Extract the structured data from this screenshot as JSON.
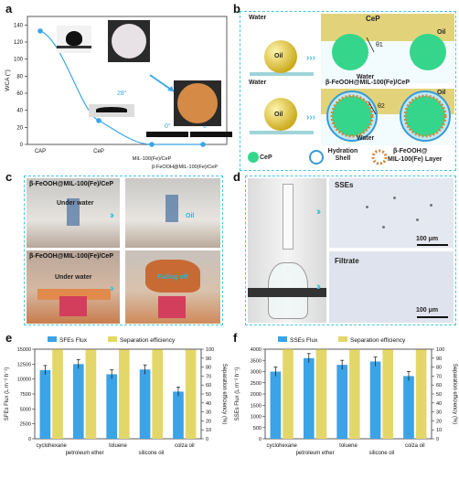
{
  "panel_labels": {
    "a": "a",
    "b": "b",
    "c": "c",
    "d": "d",
    "e": "e",
    "f": "f"
  },
  "colors": {
    "accent": "#46c6dd",
    "flux_bar": "#3ba3e6",
    "efficiency_bar": "#e4d76a",
    "oil": "#e6c82f",
    "cep": "#35d68c"
  },
  "panel_a": {
    "chart_data": {
      "type": "line",
      "ylabel": "WCA (°)",
      "ylim": [
        0,
        150
      ],
      "yticks": [
        0,
        20,
        40,
        60,
        80,
        100,
        120,
        140
      ],
      "categories": [
        "CAP",
        "CeP",
        "MIL-100(Fe)/CeP",
        "β-FeOOH@MIL-100(Fe)/CeP"
      ],
      "values": [
        133,
        28,
        0,
        0
      ],
      "annotations": [
        "133°",
        "28°",
        "0°",
        "0°"
      ]
    }
  },
  "panel_b": {
    "top": {
      "water": "Water",
      "cep": "CeP",
      "oil": "Oil",
      "oil_right": "Oil",
      "water_bottom": "Water",
      "theta": "θ1"
    },
    "bottom": {
      "water": "Water",
      "title": "β-FeOOH@MIL-100(Fe)/CeP",
      "oil": "Oil",
      "oil_right": "Oil",
      "water_bottom": "Water",
      "theta": "θ2"
    },
    "legend": {
      "cep": "CeP",
      "hydration": "Hydration Shell",
      "layer_line1": "β-FeOOH@",
      "layer_line2": "MIL-100(Fe) Layer"
    }
  },
  "panel_c": {
    "top_title": "β-FeOOH@MIL-100(Fe)/CeP",
    "under_water": "Under water",
    "oil_label": "Oil",
    "bottom_title": "β-FeOOH@MIL-100(Fe)/CeP",
    "under_water_2": "Under water",
    "falling_off": "Falling off"
  },
  "panel_d": {
    "sses": "SSEs",
    "scale_top": "100 μm",
    "filtrate": "Filtrate",
    "scale_bottom": "100 μm"
  },
  "panel_e": {
    "chart_data": {
      "type": "bar",
      "categories": [
        "cyclohexane",
        "petroleum ether",
        "toluene",
        "silicone oil",
        "colza oil"
      ],
      "series": [
        {
          "name": "SFEs Flux",
          "axis": "left",
          "values": [
            11500,
            12500,
            10800,
            11600,
            7900
          ]
        },
        {
          "name": "Separation efficiency",
          "axis": "right",
          "values": [
            99.7,
            99.6,
            99.5,
            99.6,
            99.3
          ]
        }
      ],
      "ylabel_left": "SFEs Flux (L m⁻² h⁻¹)",
      "ylabel_right": "Separation efficiency (%)",
      "ylim_left": [
        0,
        15000
      ],
      "yticks_left": [
        0,
        2500,
        5000,
        7500,
        10000,
        12500,
        15000
      ],
      "ylim_right": [
        0,
        100
      ],
      "yticks_right": [
        0,
        10,
        20,
        30,
        40,
        50,
        60,
        70,
        80,
        90,
        100
      ],
      "legend_placement": "top"
    }
  },
  "panel_f": {
    "chart_data": {
      "type": "bar",
      "categories": [
        "cyclohexane",
        "petroleum ether",
        "toluene",
        "silicone oil",
        "colza oil"
      ],
      "series": [
        {
          "name": "SSEs Flux",
          "axis": "left",
          "values": [
            3000,
            3600,
            3300,
            3450,
            2800
          ]
        },
        {
          "name": "Separation efficiency",
          "axis": "right",
          "values": [
            99.8,
            99.7,
            99.7,
            99.6,
            99.4
          ]
        }
      ],
      "ylabel_left": "SSEs Flux (L m⁻² h⁻¹)",
      "ylabel_right": "Separation efficiency (%)",
      "ylim_left": [
        0,
        4000
      ],
      "yticks_left": [
        0,
        500,
        1000,
        1500,
        2000,
        2500,
        3000,
        3500,
        4000
      ],
      "ylim_right": [
        0,
        100
      ],
      "yticks_right": [
        0,
        10,
        20,
        30,
        40,
        50,
        60,
        70,
        80,
        90,
        100
      ],
      "legend_placement": "top"
    }
  }
}
